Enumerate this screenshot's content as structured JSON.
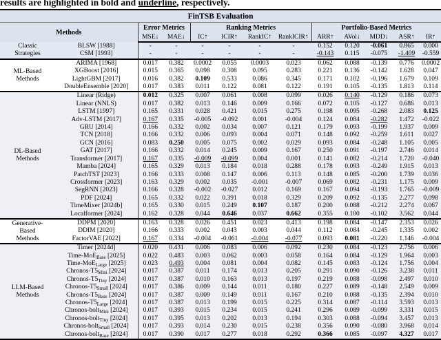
{
  "caption": {
    "before": "results are highlighted in bold and ",
    "underlined_word": "underline",
    "after": ", respectively."
  },
  "table": {
    "title": "FinTSB Evaluation",
    "methods_header": "Methods",
    "col_groups": [
      {
        "label": "Error Metrics",
        "cols": [
          "MSE↓",
          "MAE↓"
        ]
      },
      {
        "label": "Ranking Metrics",
        "cols": [
          "IC↑",
          "ICIR↑",
          "RankIC↑",
          "RankICIR↑"
        ]
      },
      {
        "label": "Portfolio-Based Metrics",
        "cols": [
          "ARR↑",
          "AVol↓",
          "MDD↓",
          "ASR↑",
          "IR↑"
        ]
      }
    ],
    "format_legend": {
      "bold_marker": "** best **",
      "underline_marker": "__ worst __",
      "subscript_marker": "~sub~"
    },
    "sections": [
      {
        "category": "Classic\nStrategies",
        "shade": "blue",
        "rows": [
          {
            "method": "BLSW [1988]",
            "values": [
              "-",
              "-",
              "-",
              "-",
              "-",
              "-",
              "0.152",
              "0.120",
              "**-0.061**",
              "0.865",
              "0.000"
            ]
          },
          {
            "method": "CSM [1993]",
            "values": [
              "-",
              "-",
              "-",
              "-",
              "-",
              "-",
              "__-0.143__",
              "0.115",
              "-0.075",
              "__-1.409__",
              "-0.559"
            ]
          }
        ]
      },
      {
        "category": "ML-Based\nMethods",
        "shade": "",
        "rows": [
          {
            "method": "ARIMA [1968]",
            "values": [
              "0.017",
              "0.382",
              "0.0002",
              "0.055",
              "0.0003",
              "0.023",
              "0.062",
              "0.088",
              "-0.139",
              "0.776",
              "0.0002"
            ]
          },
          {
            "method": "XGBoost [2016]",
            "values": [
              "0.015",
              "0.365",
              "0.098",
              "0.308",
              "0.095",
              "0.283",
              "0.221",
              "0.136",
              "-0.142",
              "1.628",
              "0.047"
            ]
          },
          {
            "method": "LightGBM [2017]",
            "values": [
              "0.016",
              "0.382",
              "**0.109**",
              "0.533",
              "0.086",
              "0.345",
              "0.171",
              "0.102",
              "-0.196",
              "1.679",
              "0.109"
            ]
          },
          {
            "method": "DoubleEnsemble [2020]",
            "values": [
              "0.017",
              "0.383",
              "0.011",
              "0.122",
              "0.081",
              "0.122",
              "0.191",
              "0.105",
              "-0.135",
              "1.813",
              "0.114"
            ]
          }
        ]
      },
      {
        "category": "DL-Based\nMethods",
        "shade": "gray",
        "rows": [
          {
            "method": "Linear (Ridge)",
            "values": [
              "**0.012**",
              "0.325",
              "0.007",
              "0.061",
              "0.008",
              "0.099",
              "0.026",
              "__0.140__",
              "-0.129",
              "0.186",
              "0.073"
            ]
          },
          {
            "method": "Linear (NNLS)",
            "values": [
              "0.017",
              "0.382",
              "0.013",
              "0.146",
              "0.009",
              "0.166",
              "0.072",
              "0.105",
              "-0.127",
              "0.686",
              "0.013"
            ]
          },
          {
            "method": "LSTM [1997]",
            "values": [
              "0.165",
              "0.331",
              "0.028",
              "0.421",
              "0.015",
              "0.275",
              "0.198",
              "0.095",
              "-0.268",
              "2.083",
              "**0.125**"
            ]
          },
          {
            "method": "Adv-LSTM [2017]",
            "values": [
              "__0.167__",
              "0.335",
              "-0.005",
              "-0.092",
              "0.001",
              "-0.004",
              "0.124",
              "0.084",
              "__-0.282__",
              "1.472",
              "-0.022"
            ]
          },
          {
            "method": "GRU [2014]",
            "values": [
              "0.166",
              "0.332",
              "0.002",
              "0.034",
              "0.007",
              "0.121",
              "0.179",
              "0.093",
              "-0.199",
              "1.937",
              "0.009"
            ]
          },
          {
            "method": "TCN [2018]",
            "values": [
              "0.166",
              "0.332",
              "0.006",
              "0.093",
              "0.004",
              "0.071",
              "0.148",
              "0.092",
              "-0.259",
              "1.611",
              "0.027"
            ]
          },
          {
            "method": "GCN [2016]",
            "values": [
              "0.083",
              "**0.250**",
              "0.005",
              "0.075",
              "0.002",
              "0.029",
              "0.093",
              "0.084",
              "-0.248",
              "1.105",
              "0.005"
            ]
          },
          {
            "method": "GAT [2017]",
            "values": [
              "0.166",
              "0.332",
              "0.014",
              "0.245",
              "0.009",
              "0.167",
              "0.250",
              "0.091",
              "-0.197",
              "2.746",
              "0.014"
            ]
          },
          {
            "method": "Transformer [2017]",
            "values": [
              "__0.167__",
              "0.335",
              "__-0.009__",
              "__-0.099__",
              "0.004",
              "0.001",
              "0.141",
              "0.082",
              "-0.214",
              "1.720",
              "-0.040"
            ]
          },
          {
            "method": "Mamba [2024]",
            "values": [
              "0.165",
              "0.329",
              "0.013",
              "0.184",
              "0.018",
              "0.288",
              "0.178",
              "0.093",
              "-0.249",
              "1.915",
              "0.013"
            ]
          },
          {
            "method": "PatchTST [2023]",
            "values": [
              "0.166",
              "0.333",
              "0.008",
              "0.147",
              "0.006",
              "0.113",
              "0.148",
              "0.085",
              "-0.200",
              "1.739",
              "0.036"
            ]
          },
          {
            "method": "Crossformer [2023]",
            "values": [
              "0.163",
              "0.329",
              "0.002",
              "0.035",
              "-0.001",
              "-0.007",
              "0.069",
              "0.082",
              "-0.231",
              "1.175",
              "0.009"
            ]
          },
          {
            "method": "SegRNN [2023]",
            "values": [
              "0.166",
              "0.328",
              "-0.002",
              "-0.027",
              "0.012",
              "0.169",
              "0.167",
              "0.094",
              "-0.193",
              "1.765",
              "-0.009"
            ]
          },
          {
            "method": "PDF [2024]",
            "values": [
              "0.165",
              "0.332",
              "0.022",
              "0.391",
              "0.018",
              "0.329",
              "0.209",
              "0.092",
              "-0.135",
              "2.277",
              "0.098"
            ]
          },
          {
            "method": "TimeMixer [2024b]",
            "values": [
              "0.165",
              "0.330",
              "0.015",
              "0.249",
              "**0.107**",
              "0.187",
              "0.200",
              "0.088",
              "-0.212",
              "2.274",
              "0.067"
            ]
          },
          {
            "method": "Localformer [2024]",
            "values": [
              "0.162",
              "0.328",
              "0.044",
              "**0.646**",
              "0.037",
              "**0.662**",
              "0.355",
              "0.100",
              "-0.102",
              "3.562",
              "0.044"
            ]
          }
        ]
      },
      {
        "category": "Generative-\nBased\nMethods",
        "shade": "",
        "rows": [
          {
            "method": "DDPM [2020]",
            "values": [
              "0.163",
              "0.328",
              "0.026",
              "0.451",
              "0.023",
              "0.413",
              "0.198",
              "0.084",
              "-0.147",
              "2.353",
              "0.026"
            ]
          },
          {
            "method": "DDIM [2020]",
            "values": [
              "0.166",
              "0.333",
              "0.002",
              "0.043",
              "0.003",
              "0.044",
              "0.112",
              "0.084",
              "-0.245",
              "1.335",
              "0.002"
            ]
          },
          {
            "method": "FactorVAE [2022]",
            "values": [
              "__0.167__",
              "0.334",
              "-0.004",
              "-0.061",
              "__-0.004__",
              "__-0.077__",
              "0.093",
              "**0.081**",
              "-0.220",
              "1.146",
              "-0.004"
            ]
          }
        ]
      },
      {
        "category": "LLM-Based\nMethods",
        "shade": "gray",
        "rows": [
          {
            "method": "Timer [2024d]",
            "values": [
              "0.020",
              "0.431",
              "0.006",
              "0.083",
              "0.006",
              "0.092",
              "0.230",
              "0.084",
              "-0.123",
              "2.756",
              "0.006"
            ]
          },
          {
            "method": "Time-MoE~Base~ [2025]",
            "values": [
              "0.022",
              "0.483",
              "0.003",
              "0.062",
              "0.003",
              "0.058",
              "0.164",
              "0.084",
              "-0.129",
              "1.964",
              "0.003"
            ]
          },
          {
            "method": "Time-MoE~Large~ [2025]",
            "values": [
              "0.023",
              "__0.493__",
              "0.004",
              "0.081",
              "0.004",
              "0.082",
              "0.145",
              "0.083",
              "-0.124",
              "1.756",
              "0.004"
            ]
          },
          {
            "method": "Chronos-T5~Mini~ [2024]",
            "values": [
              "0.017",
              "0.387",
              "0.011",
              "0.174",
              "0.013",
              "0.205",
              "0.291",
              "0.090",
              "-0.126",
              "3.238",
              "0.011"
            ]
          },
          {
            "method": "Chronos-T5~Tiny~ [2024]",
            "values": [
              "0.017",
              "0.387",
              "0.010",
              "0.163",
              "0.013",
              "0.197",
              "0.219",
              "0.088",
              "-0.098",
              "2.497",
              "0.010"
            ]
          },
          {
            "method": "Chronos-T5~Small~ [2024]",
            "values": [
              "0.017",
              "0.386",
              "0.009",
              "0.144",
              "0.011",
              "0.180",
              "0.227",
              "0.089",
              "-0.148",
              "2.549",
              "0.009"
            ]
          },
          {
            "method": "Chronos-T5~Base~ [2024]",
            "values": [
              "0.017",
              "0.387",
              "0.009",
              "0.149",
              "0.011",
              "0.167",
              "0.210",
              "0.088",
              "-0.135",
              "2.394",
              "0.010"
            ]
          },
          {
            "method": "Chronos-T5~Large~ [2024]",
            "values": [
              "0.017",
              "0.387",
              "0.013",
              "0.199",
              "0.015",
              "0.225",
              "0.314",
              "0.087",
              "-0.114",
              "3.593",
              "0.013"
            ]
          },
          {
            "method": "Chronos-bolt~Mini~ [2024]",
            "values": [
              "0.017",
              "0.393",
              "0.015",
              "0.234",
              "0.015",
              "0.241",
              "0.296",
              "0.089",
              "-0.099",
              "3.331",
              "0.015"
            ]
          },
          {
            "method": "Chronos-bolt~Tiny~ [2024]",
            "values": [
              "0.017",
              "0.395",
              "0.013",
              "0.202",
              "0.013",
              "0.194",
              "0.303",
              "0.088",
              "-0.094",
              "3.457",
              "0.013"
            ]
          },
          {
            "method": "Chronos-bolt~Small~ [2024]",
            "values": [
              "0.017",
              "0.393",
              "0.014",
              "0.230",
              "0.015",
              "0.238",
              "0.356",
              "0.090",
              "-0.080",
              "3.968",
              "0.014"
            ]
          },
          {
            "method": "Chronos-bolt~Base~ [2024]",
            "values": [
              "0.017",
              "0.390",
              "0.017",
              "0.277",
              "0.018",
              "0.292",
              "**0.366**",
              "0.085",
              "-0.097",
              "**4.327**",
              "0.017"
            ]
          }
        ]
      }
    ]
  }
}
